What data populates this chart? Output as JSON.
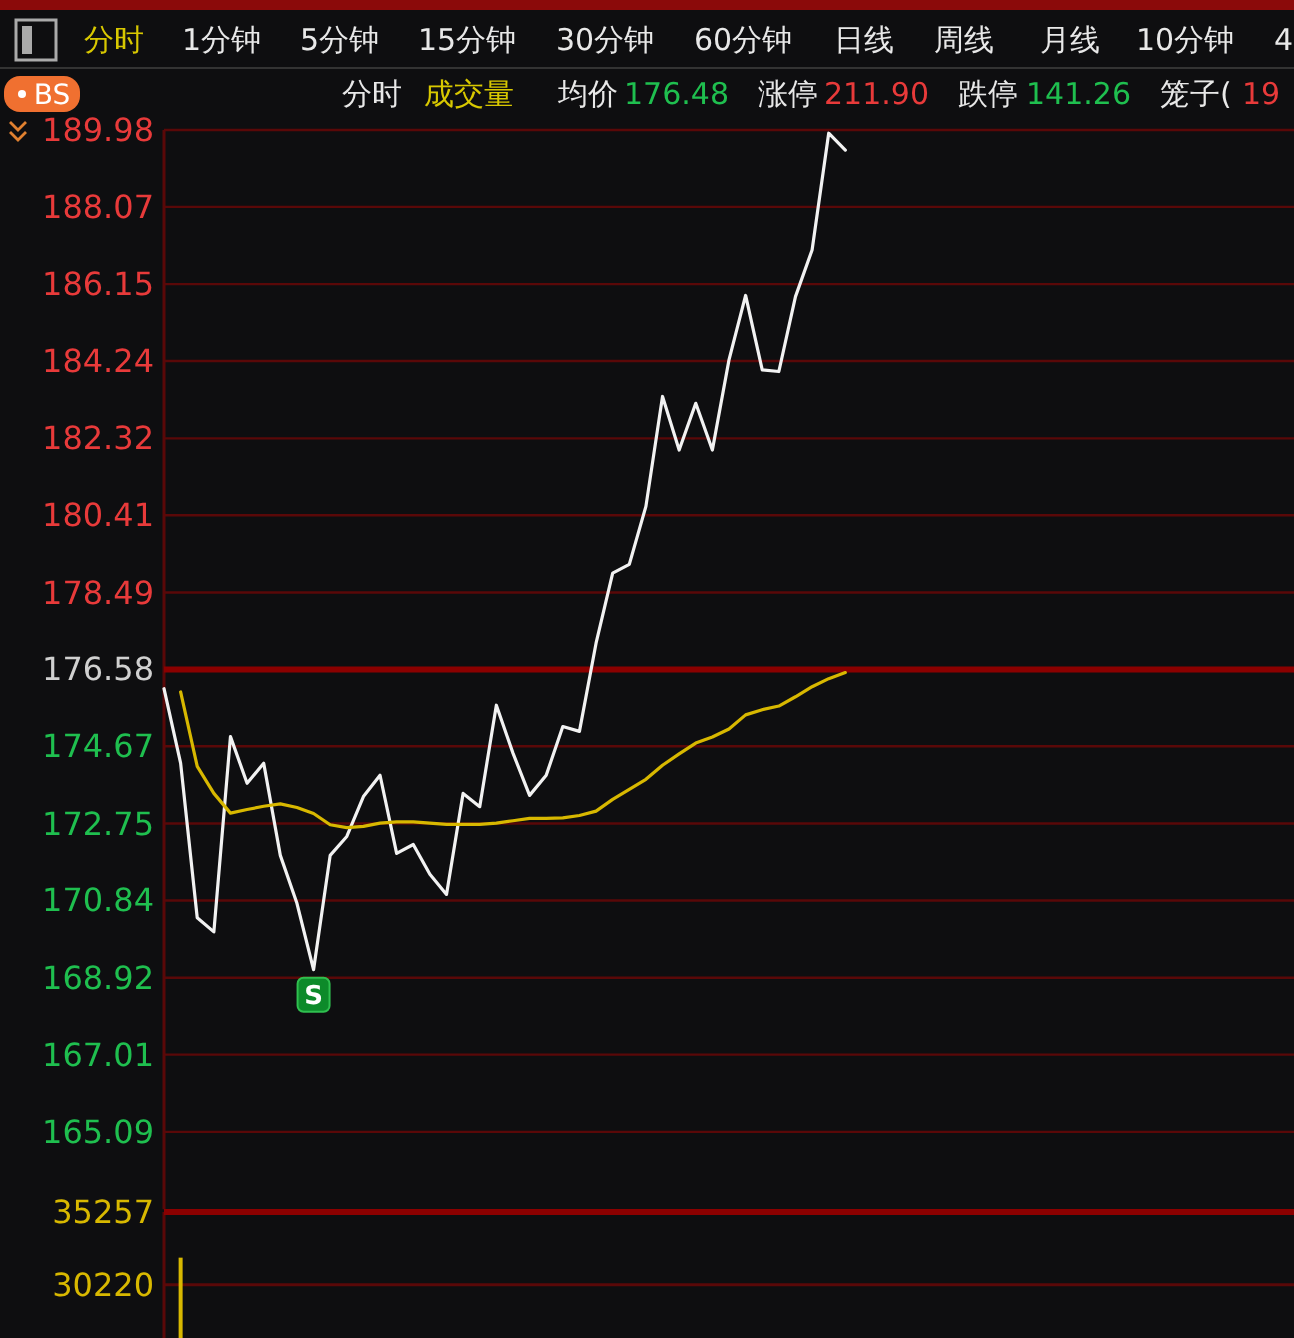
{
  "chart_data": [
    {
      "type": "line",
      "categories": [
        null,
        null,
        null,
        null,
        null,
        null,
        null,
        null,
        null,
        null,
        null,
        null,
        null,
        null,
        null,
        null,
        null,
        null,
        null,
        null,
        null,
        null,
        null,
        null,
        null,
        null,
        null,
        null,
        null,
        null,
        null,
        null,
        null,
        null,
        null,
        null,
        null,
        null,
        null,
        null,
        null,
        null,
        null,
        null,
        null,
        null,
        null,
        null,
        null,
        null,
        null,
        null,
        null,
        null,
        null,
        null,
        null,
        null,
        null,
        null,
        null,
        null,
        null,
        null,
        null,
        null,
        null,
        null
      ],
      "ylim": [
        163.17,
        189.98
      ],
      "yticks": [
        189.98,
        188.07,
        186.15,
        184.24,
        182.32,
        180.41,
        178.49,
        176.58,
        174.67,
        172.75,
        170.84,
        168.92,
        167.01,
        165.09
      ],
      "grid": "y",
      "tick_labels": "y",
      "series": [
        {
          "color": "#f2f2f2",
          "values": [
            176.1,
            174.25,
            170.41,
            170.06,
            174.91,
            173.75,
            174.25,
            171.96,
            170.77,
            169.12,
            171.96,
            172.43,
            173.42,
            173.95,
            172.01,
            172.23,
            171.49,
            170.99,
            173.5,
            173.17,
            175.69,
            174.5,
            173.45,
            173.95,
            175.16,
            175.04,
            177.23,
            178.97,
            179.19,
            180.63,
            183.36,
            182.03,
            183.19,
            182.03,
            184.27,
            185.87,
            184.02,
            183.98,
            185.84,
            187.0,
            189.9,
            189.48,
            null,
            null,
            null,
            null,
            null,
            null,
            null,
            null,
            null,
            null,
            null,
            null,
            null,
            null,
            null,
            null,
            null,
            null,
            null,
            null,
            null,
            null,
            null,
            null,
            null,
            null
          ]
        },
        {
          "color": "#d8b800",
          "values": [
            null,
            176.02,
            174.17,
            173.5,
            173.01,
            173.1,
            173.18,
            173.24,
            173.15,
            173.0,
            172.72,
            172.65,
            172.68,
            172.76,
            172.79,
            172.79,
            172.76,
            172.73,
            172.73,
            172.73,
            172.76,
            172.82,
            172.88,
            172.88,
            172.89,
            172.95,
            173.06,
            173.35,
            173.6,
            173.85,
            174.2,
            174.48,
            174.75,
            174.9,
            175.1,
            175.45,
            175.58,
            175.67,
            175.9,
            176.15,
            176.35,
            176.5,
            null,
            null,
            null,
            null,
            null,
            null,
            null,
            null,
            null,
            null,
            null,
            null,
            null,
            null,
            null,
            null,
            null,
            null,
            null,
            null,
            null,
            null,
            null,
            null,
            null,
            null
          ]
        }
      ],
      "ref_lines": [
        {
          "axis": "y",
          "value": 176.58,
          "color": "#8b0000"
        }
      ],
      "annotations": [
        "分时",
        "1分钟",
        "5分钟",
        "15分钟",
        "30分钟",
        "60分钟",
        "日线",
        "周线",
        "月线",
        "10分钟",
        "4",
        "BS",
        "分时",
        "成交量",
        "均价",
        "176.48",
        "涨停",
        "211.90",
        "跌停",
        "141.26",
        "笼子(",
        "19",
        {
          "text": "S",
          "y": 169.12
        }
      ]
    },
    {
      "type": "bar",
      "categories": [
        null,
        null,
        null,
        null,
        null,
        null,
        null,
        null,
        null,
        null,
        null,
        null,
        null,
        null,
        null,
        null,
        null,
        null,
        null,
        null,
        null,
        null,
        null,
        null,
        null,
        null,
        null,
        null,
        null,
        null,
        null,
        null,
        null,
        null,
        null,
        null,
        null,
        null,
        null,
        null,
        null,
        null,
        null,
        null,
        null,
        null,
        null,
        null,
        null,
        null,
        null,
        null,
        null,
        null,
        null,
        null,
        null,
        null,
        null,
        null,
        null,
        null,
        null,
        null,
        null,
        null,
        null,
        null
      ],
      "values": [
        null,
        32100,
        null,
        null,
        null,
        null,
        null,
        null,
        null,
        null,
        null,
        null,
        null,
        null,
        null,
        null,
        null,
        null,
        null,
        null,
        null,
        null,
        null,
        null,
        null,
        null,
        null,
        null,
        null,
        null,
        null,
        null,
        null,
        null,
        null,
        null,
        null,
        null,
        null,
        null,
        null,
        null,
        null,
        null,
        null,
        null,
        null,
        null,
        null,
        null,
        null,
        null,
        null,
        null,
        null,
        null,
        null,
        null,
        null,
        null,
        null,
        null,
        null,
        null,
        null,
        null,
        null,
        null
      ],
      "color": "#d8b800",
      "ylim": [
        26544,
        35257
      ],
      "yticks": [
        35257,
        30220
      ],
      "ref_lines": [
        {
          "axis": "y",
          "value": 30220,
          "color": "#5a0808"
        }
      ],
      "tick_labels": "y"
    }
  ]
}
